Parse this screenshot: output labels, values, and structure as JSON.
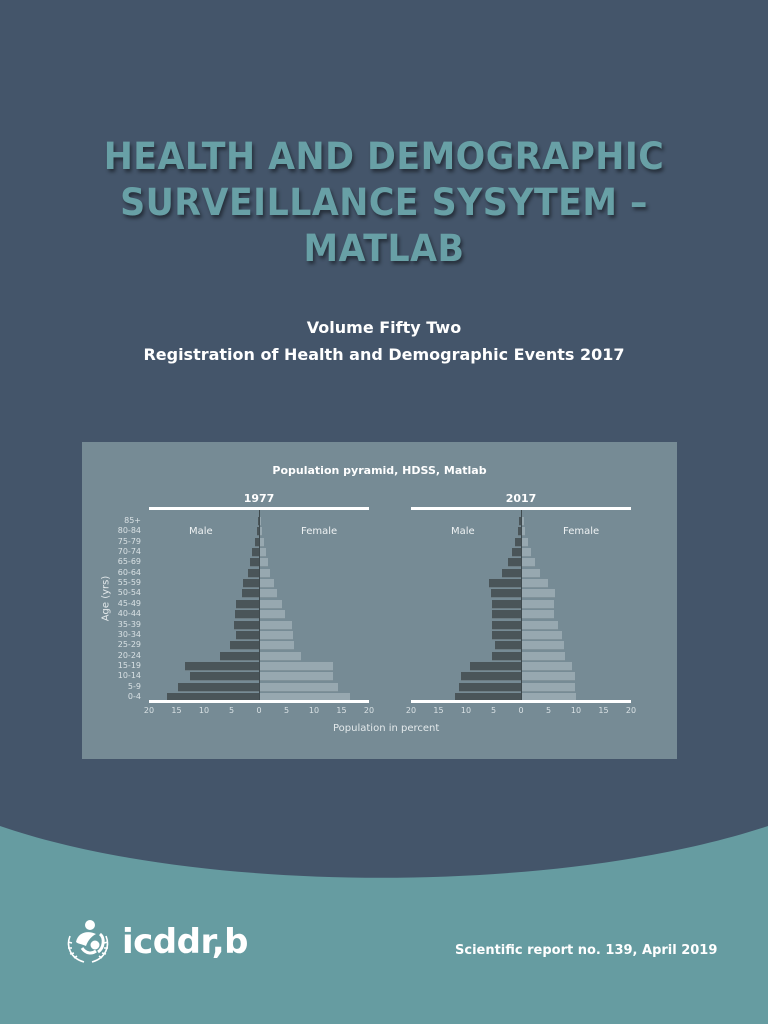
{
  "cover": {
    "title_lines": [
      "HEALTH AND DEMOGRAPHIC",
      "SURVEILLANCE SYSYTEM –",
      "MATLAB"
    ],
    "subtitle_lines": [
      "Volume Fifty Two",
      "Registration of Health and Demographic Events 2017"
    ],
    "colors": {
      "background_top": "#44556a",
      "background_bottom": "#669ca1",
      "title": "#68a0a6",
      "chart_card": "#768b95",
      "male_bar": "#4a5559",
      "female_bar": "#97a8b0"
    }
  },
  "footer": {
    "logo_text": "icddr,b",
    "logo_icon": "icddrb-emblem-icon",
    "report_note": "Scientific report no. 139, April 2019"
  },
  "chart_data": {
    "type": "bar",
    "title": "Population pyramid, HDSS, Matlab",
    "xlabel": "Population in percent",
    "ylabel": "Age (yrs)",
    "xlim": [
      -20,
      20
    ],
    "x_ticks": [
      "20",
      "15",
      "10",
      "5",
      "0",
      "5",
      "10",
      "15",
      "20"
    ],
    "categories": [
      "85+",
      "80-84",
      "75-79",
      "70-74",
      "65-69",
      "60-64",
      "55-59",
      "50-54",
      "45-49",
      "40-44",
      "35-39",
      "30-34",
      "25-29",
      "20-24",
      "15-19",
      "10-14",
      "5-9",
      "0-4"
    ],
    "panels": [
      {
        "title": "1977",
        "left_label": "Male",
        "right_label": "Female",
        "series": [
          {
            "name": "Male",
            "values": [
              0.2,
              0.4,
              0.8,
              1.2,
              1.6,
              2.0,
              2.9,
              3.1,
              4.1,
              4.4,
              4.5,
              4.2,
              5.2,
              7.1,
              13.4,
              12.6,
              14.7,
              16.8
            ]
          },
          {
            "name": "Female",
            "values": [
              0.1,
              0.3,
              0.7,
              1.1,
              1.5,
              1.8,
              2.6,
              3.0,
              4.0,
              4.6,
              5.8,
              6.0,
              6.2,
              7.5,
              13.2,
              13.2,
              14.1,
              16.3
            ]
          }
        ]
      },
      {
        "title": "2017",
        "left_label": "Male",
        "right_label": "Female",
        "series": [
          {
            "name": "Male",
            "values": [
              0.3,
              0.6,
              1.1,
              1.6,
              2.4,
              3.4,
              5.8,
              5.5,
              5.2,
              5.2,
              5.3,
              5.2,
              4.8,
              5.2,
              9.2,
              11.0,
              11.2,
              12.0
            ]
          },
          {
            "name": "Female",
            "values": [
              0.3,
              0.6,
              1.0,
              1.6,
              2.4,
              3.3,
              4.8,
              6.0,
              5.8,
              5.8,
              6.5,
              7.3,
              7.6,
              7.8,
              9.1,
              9.6,
              9.6,
              9.8
            ]
          }
        ]
      }
    ],
    "grid": false,
    "legend": "none"
  }
}
